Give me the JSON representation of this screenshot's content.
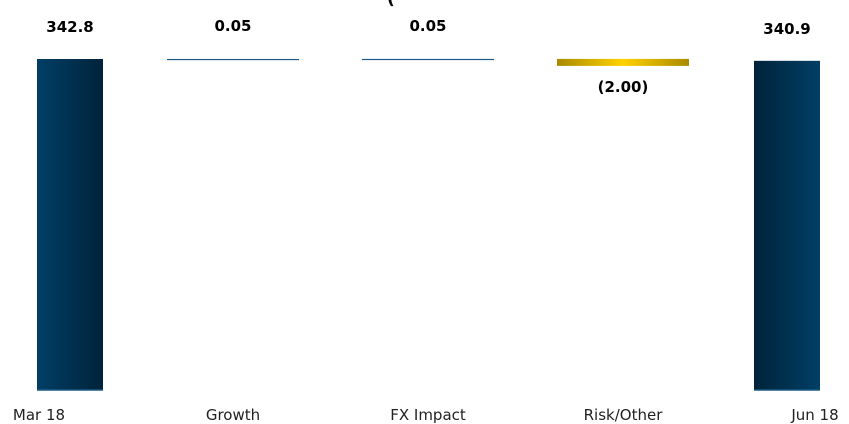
{
  "chart_data": {
    "type": "bar",
    "subtype": "waterfall",
    "title": "(",
    "categories": [
      "Mar 18",
      "Growth",
      "FX Impact",
      "Risk/Other",
      "Jun 18"
    ],
    "values": [
      342.8,
      0.05,
      0.05,
      -2.0,
      340.9
    ],
    "data_labels": [
      "342.8",
      "0.05",
      "0.05",
      "(2.00)",
      "340.9"
    ],
    "bar_kinds": [
      "total",
      "delta",
      "delta",
      "delta",
      "total"
    ],
    "ylim": [
      0,
      342.8
    ],
    "grid": false,
    "legend": "none",
    "colors": {
      "total_dark": "#00233a",
      "total_light": "#003f66",
      "increase": "#1b5a86",
      "decrease_dark": "#a98a00",
      "decrease_light": "#ffd200",
      "axis": "#1b5a86"
    }
  }
}
